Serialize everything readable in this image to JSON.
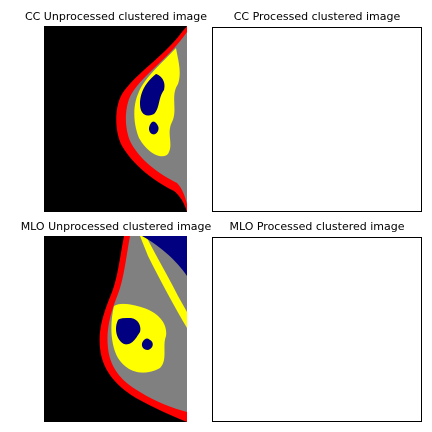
{
  "figure": {
    "panels": [
      {
        "id": "cc-unprocessed",
        "title": "CC Unprocessed clustered image"
      },
      {
        "id": "cc-processed",
        "title": "CC Processed clustered image"
      },
      {
        "id": "mlo-unprocessed",
        "title": "MLO Unprocessed clustered image"
      },
      {
        "id": "mlo-processed",
        "title": "MLO Processed clustered image"
      }
    ],
    "cluster_colors": {
      "background": "#000000",
      "skin_edge": "#ff0000",
      "tissue": "#808080",
      "dense": "#ffff00",
      "core": "#000080"
    }
  }
}
